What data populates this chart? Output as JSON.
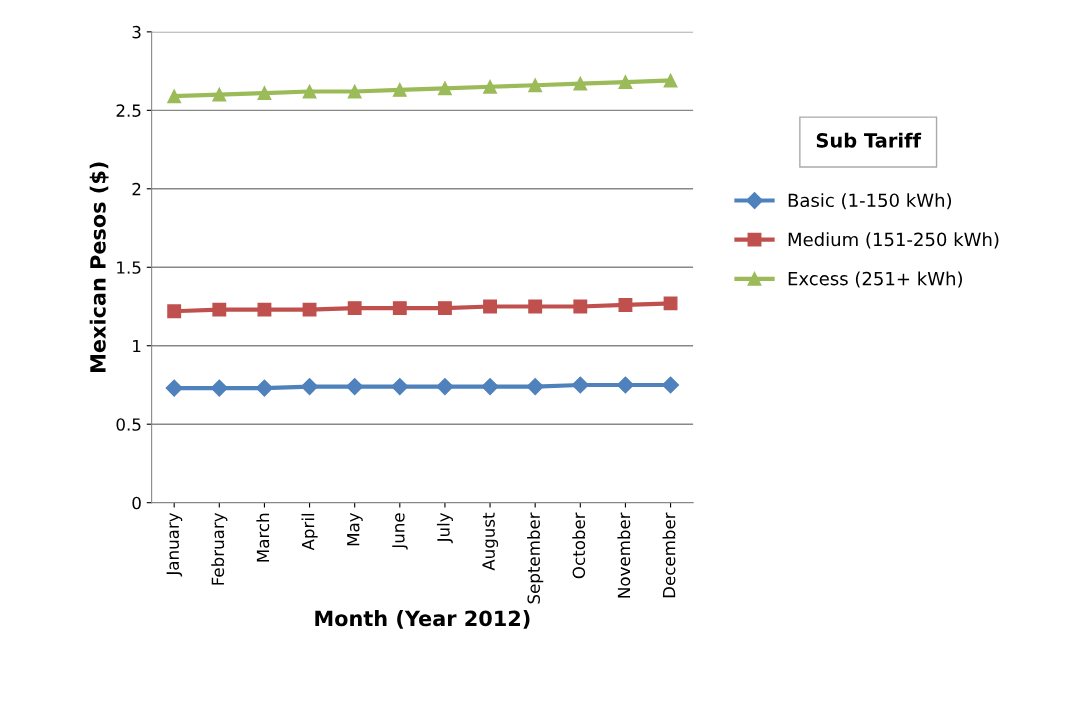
{
  "chart_data": {
    "type": "line",
    "xlabel": "Month (Year 2012)",
    "ylabel": "Mexican Pesos ($)",
    "legend_title": "Sub Tariff",
    "categories": [
      "January",
      "February",
      "March",
      "April",
      "May",
      "June",
      "July",
      "August",
      "September",
      "October",
      "November",
      "December"
    ],
    "series": [
      {
        "name": "Basic (1-150 kWh)",
        "color": "#4f81bd",
        "marker": "diamond",
        "values": [
          0.73,
          0.73,
          0.73,
          0.74,
          0.74,
          0.74,
          0.74,
          0.74,
          0.74,
          0.75,
          0.75,
          0.75
        ]
      },
      {
        "name": "Medium (151-250 kWh)",
        "color": "#c0504d",
        "marker": "square",
        "values": [
          1.22,
          1.23,
          1.23,
          1.23,
          1.24,
          1.24,
          1.24,
          1.25,
          1.25,
          1.25,
          1.26,
          1.27
        ]
      },
      {
        "name": "Excess (251+ kWh)",
        "color": "#9bbb59",
        "marker": "triangle",
        "values": [
          2.59,
          2.6,
          2.61,
          2.62,
          2.62,
          2.63,
          2.64,
          2.65,
          2.66,
          2.67,
          2.68,
          2.69
        ]
      }
    ],
    "ylim": [
      0,
      3
    ],
    "yticks": [
      0,
      0.5,
      1,
      1.5,
      2,
      2.5,
      3
    ],
    "grid": "y",
    "legend": "right",
    "line_style": "solid"
  }
}
